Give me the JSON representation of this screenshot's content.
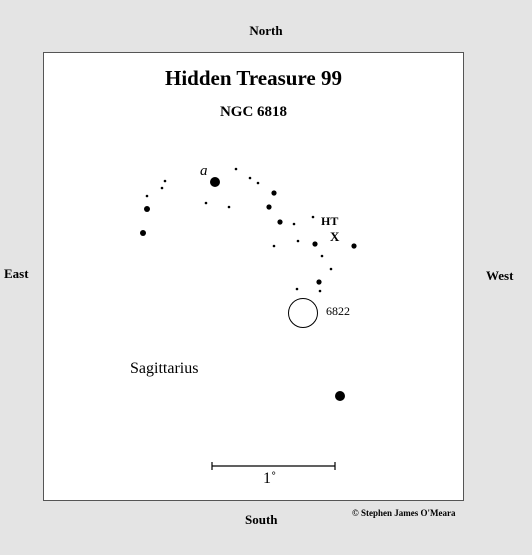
{
  "directions": {
    "north": "North",
    "south": "South",
    "east": "East",
    "west": "West"
  },
  "copyright": "© Stephen James O'Meara",
  "chart": {
    "title": "Hidden Treasure 99",
    "subtitle": "NGC 6818",
    "labels": {
      "alpha": "a",
      "ht": "HT",
      "x": "X",
      "galaxy": "6822",
      "constellation": "Sagittarius",
      "scale": "1˚"
    }
  }
}
